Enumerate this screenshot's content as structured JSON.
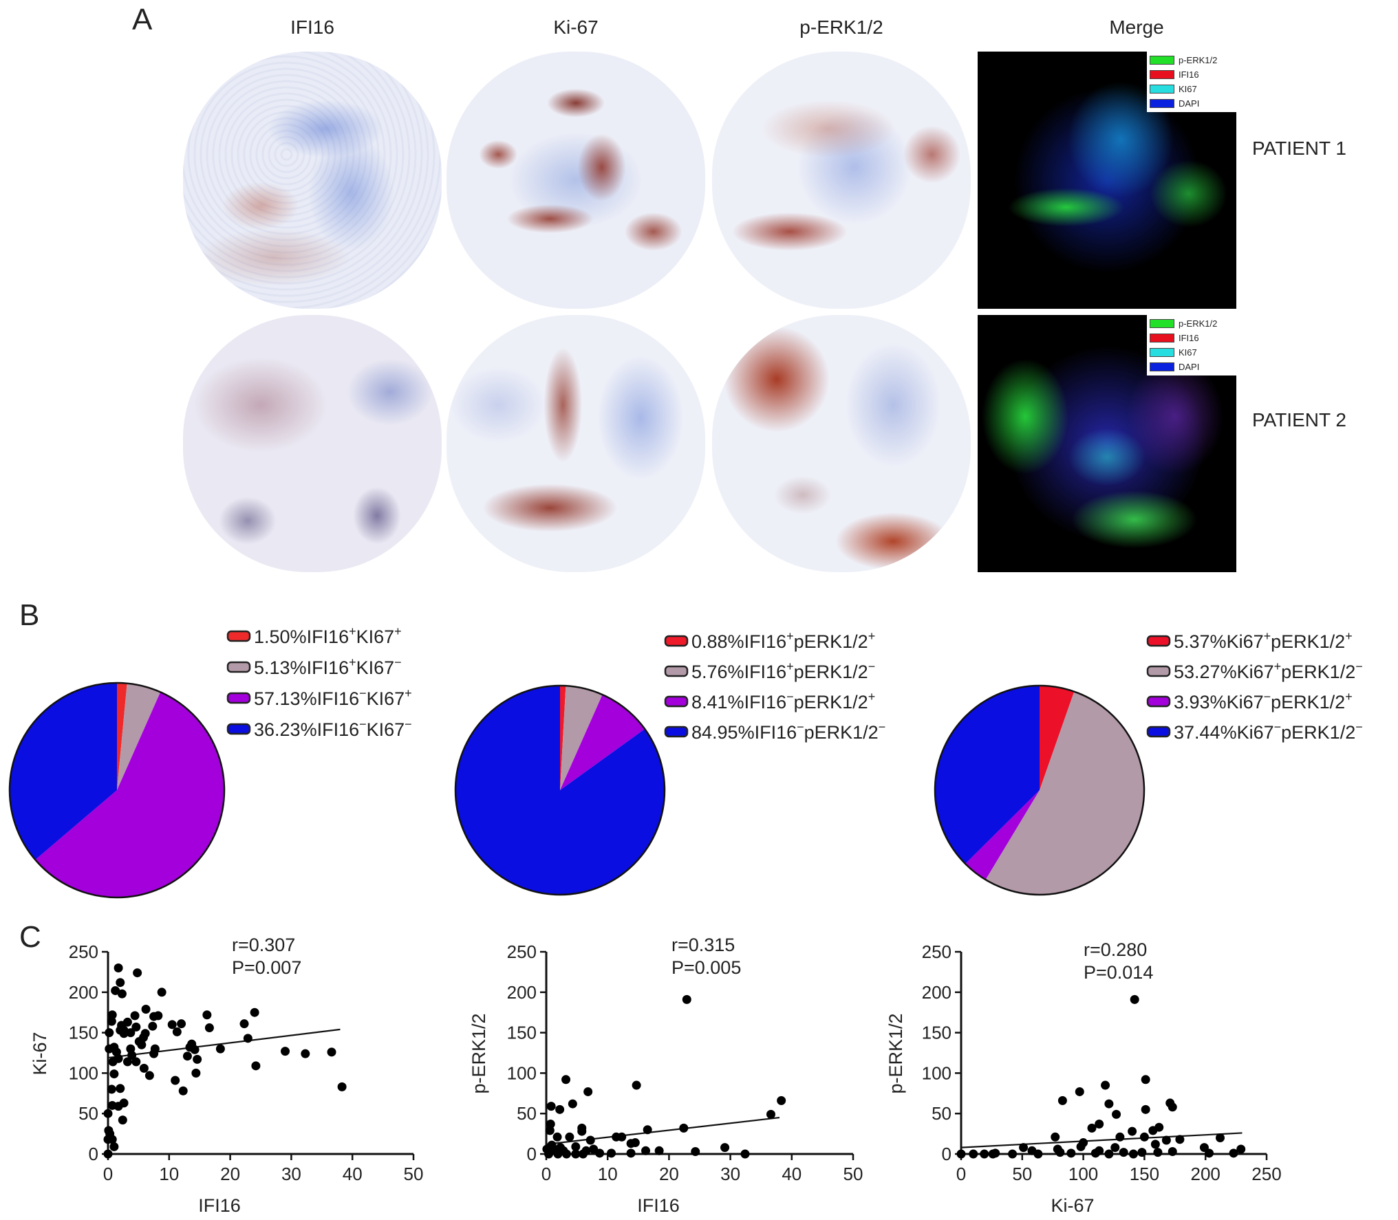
{
  "panel_labels": {
    "a": "A",
    "b": "B",
    "c": "C"
  },
  "panel_a": {
    "columns": [
      "IFI16",
      "Ki-67",
      "p-ERK1/2",
      "Merge"
    ],
    "rows": [
      "PATIENT 1",
      "PATIENT 2"
    ],
    "merge_legend": [
      {
        "label": "p-ERK1/2",
        "color": "#22e028"
      },
      {
        "label": "IFI16",
        "color": "#e8101e"
      },
      {
        "label": "KI67",
        "color": "#27dde0"
      },
      {
        "label": "DAPI",
        "color": "#0a22e0"
      }
    ]
  },
  "chart_data": [
    {
      "type": "pie",
      "slices": [
        {
          "label": "1.50%",
          "a": "IFI16",
          "as": "+",
          "b": "KI67",
          "bs": "+",
          "value": 1.5,
          "color": "#ef2a2a"
        },
        {
          "label": "5.13%",
          "a": "IFI16",
          "as": "+",
          "b": "KI67",
          "bs": "−",
          "value": 5.13,
          "color": "#b39aa8"
        },
        {
          "label": "57.13%",
          "a": "IFI16",
          "as": "−",
          "b": "KI67",
          "bs": "+",
          "value": 57.13,
          "color": "#a300dc"
        },
        {
          "label": "36.23%",
          "a": "IFI16",
          "as": "−",
          "b": "KI67",
          "bs": "−",
          "value": 36.23,
          "color": "#0a0ee0"
        }
      ],
      "legend": "right"
    },
    {
      "type": "pie",
      "slices": [
        {
          "label": "0.88%",
          "a": "IFI16",
          "as": "+",
          "b": "pERK1/2",
          "bs": "+",
          "value": 0.88,
          "color": "#ef1a2a"
        },
        {
          "label": "5.76%",
          "a": "IFI16",
          "as": "+",
          "b": "pERK1/2",
          "bs": "−",
          "value": 5.76,
          "color": "#b39aa8"
        },
        {
          "label": "8.41%",
          "a": "IFI16",
          "as": "−",
          "b": "pERK1/2",
          "bs": "+",
          "value": 8.41,
          "color": "#a300dc"
        },
        {
          "label": "84.95%",
          "a": "IFI16",
          "as": "−",
          "b": "pERK1/2",
          "bs": "−",
          "value": 84.95,
          "color": "#0a0ee0"
        }
      ],
      "legend": "right"
    },
    {
      "type": "pie",
      "slices": [
        {
          "label": "5.37%",
          "a": "Ki67",
          "as": "+",
          "b": "pERK1/2",
          "bs": "+",
          "value": 5.37,
          "color": "#ec1028"
        },
        {
          "label": "53.27%",
          "a": "Ki67",
          "as": "+",
          "b": "pERK1/2",
          "bs": "−",
          "value": 53.27,
          "color": "#b39aa8"
        },
        {
          "label": "3.93%",
          "a": "Ki67",
          "as": "−",
          "b": "pERK1/2",
          "bs": "+",
          "value": 3.93,
          "color": "#a300dc"
        },
        {
          "label": "37.44%",
          "a": "Ki67",
          "as": "−",
          "b": "pERK1/2",
          "bs": "−",
          "value": 37.44,
          "color": "#0a0ee0"
        }
      ],
      "legend": "right"
    },
    {
      "type": "scatter",
      "xlabel": "IFI16",
      "ylabel": "Ki-67",
      "xlim": [
        0,
        50
      ],
      "ylim": [
        0,
        250
      ],
      "xticks": [
        "0",
        "10",
        "20",
        "30",
        "40",
        "50"
      ],
      "yticks": [
        "0",
        "50",
        "100",
        "150",
        "200",
        "250"
      ],
      "annotation": [
        "r=0.307",
        "P=0.007"
      ],
      "fit_line": [
        [
          0,
          119
        ],
        [
          38,
          154
        ]
      ],
      "points": [
        [
          1.7,
          230
        ],
        [
          4.8,
          224
        ],
        [
          2,
          212
        ],
        [
          1.2,
          202
        ],
        [
          2.3,
          198
        ],
        [
          8.8,
          200
        ],
        [
          0.7,
          172
        ],
        [
          0.6,
          164
        ],
        [
          4.4,
          171
        ],
        [
          6.2,
          179
        ],
        [
          7.5,
          170
        ],
        [
          8.2,
          171
        ],
        [
          3.2,
          163
        ],
        [
          2.2,
          159
        ],
        [
          2.6,
          153
        ],
        [
          2.6,
          149
        ],
        [
          3.7,
          150
        ],
        [
          4.6,
          157
        ],
        [
          6.1,
          149
        ],
        [
          5.8,
          144
        ],
        [
          5.1,
          139
        ],
        [
          5.5,
          135
        ],
        [
          7.3,
          158
        ],
        [
          10.5,
          160
        ],
        [
          11.3,
          151
        ],
        [
          12,
          161
        ],
        [
          16.2,
          172
        ],
        [
          16.6,
          156
        ],
        [
          22.3,
          161
        ],
        [
          24,
          175
        ],
        [
          22.9,
          143
        ],
        [
          13.7,
          136
        ],
        [
          13.4,
          132
        ],
        [
          14.2,
          129
        ],
        [
          13,
          121
        ],
        [
          14.6,
          117
        ],
        [
          18.4,
          130
        ],
        [
          29,
          127
        ],
        [
          32.3,
          124
        ],
        [
          36.6,
          126
        ],
        [
          24.2,
          109
        ],
        [
          38.3,
          83
        ],
        [
          11,
          91
        ],
        [
          12.3,
          78
        ],
        [
          14.4,
          100
        ],
        [
          6.8,
          97
        ],
        [
          5.9,
          106
        ],
        [
          7.7,
          130
        ],
        [
          7.5,
          124
        ],
        [
          3.7,
          130
        ],
        [
          3.9,
          122
        ],
        [
          3.2,
          114
        ],
        [
          4.6,
          114
        ],
        [
          0.2,
          130
        ],
        [
          1,
          132
        ],
        [
          1.4,
          126
        ],
        [
          1.7,
          118
        ],
        [
          0.8,
          114
        ],
        [
          1,
          99
        ],
        [
          0.6,
          80
        ],
        [
          2,
          81
        ],
        [
          0.7,
          60
        ],
        [
          1.7,
          59
        ],
        [
          2.6,
          63
        ],
        [
          2.4,
          42
        ],
        [
          0,
          50
        ],
        [
          0.1,
          29
        ],
        [
          0.3,
          25
        ],
        [
          0,
          18
        ],
        [
          0.7,
          18
        ],
        [
          1,
          9
        ],
        [
          0,
          0
        ],
        [
          0.2,
          150
        ],
        [
          2,
          153
        ]
      ]
    },
    {
      "type": "scatter",
      "xlabel": "IFI16",
      "ylabel": "p-ERK1/2",
      "xlim": [
        0,
        50
      ],
      "ylim": [
        0,
        250
      ],
      "xticks": [
        "0",
        "10",
        "20",
        "30",
        "40",
        "50"
      ],
      "yticks": [
        "0",
        "50",
        "100",
        "150",
        "200",
        "250"
      ],
      "annotation": [
        "r=0.315",
        "P=0.005"
      ],
      "fit_line": [
        [
          0,
          12
        ],
        [
          38,
          45
        ]
      ],
      "points": [
        [
          22.9,
          191
        ],
        [
          3.2,
          92
        ],
        [
          14.7,
          85
        ],
        [
          6.8,
          77
        ],
        [
          38.3,
          66
        ],
        [
          4.3,
          62
        ],
        [
          0.8,
          59
        ],
        [
          2.2,
          55
        ],
        [
          36.6,
          49
        ],
        [
          0.7,
          37
        ],
        [
          0.6,
          29
        ],
        [
          5.8,
          32
        ],
        [
          5.8,
          28
        ],
        [
          22.4,
          32
        ],
        [
          16.5,
          30
        ],
        [
          1.8,
          21
        ],
        [
          3.8,
          21
        ],
        [
          7.2,
          17
        ],
        [
          11.4,
          21
        ],
        [
          12.3,
          21
        ],
        [
          13.8,
          13
        ],
        [
          14.5,
          14
        ],
        [
          29.1,
          8
        ],
        [
          32.4,
          0
        ],
        [
          24.3,
          3
        ],
        [
          18.4,
          4
        ],
        [
          16.2,
          4
        ],
        [
          13.8,
          1
        ],
        [
          10.6,
          1
        ],
        [
          8.7,
          1
        ],
        [
          7.7,
          6
        ],
        [
          4.8,
          9
        ],
        [
          2.8,
          4
        ],
        [
          1.4,
          5
        ],
        [
          0.1,
          6
        ],
        [
          0.4,
          0
        ],
        [
          1.9,
          0
        ],
        [
          3.3,
          0
        ],
        [
          6,
          0
        ],
        [
          4.8,
          0
        ],
        [
          6.5,
          4
        ],
        [
          0.9,
          11
        ],
        [
          2.3,
          8
        ]
      ]
    },
    {
      "type": "scatter",
      "xlabel": "Ki-67",
      "ylabel": "p-ERK1/2",
      "xlim": [
        0,
        250
      ],
      "ylim": [
        0,
        250
      ],
      "xticks": [
        "0",
        "50",
        "100",
        "150",
        "200",
        "250"
      ],
      "yticks": [
        "0",
        "50",
        "100",
        "150",
        "200",
        "250"
      ],
      "annotation": [
        "r=0.280",
        "P=0.014"
      ],
      "fit_line": [
        [
          0,
          8
        ],
        [
          230,
          26
        ]
      ],
      "points": [
        [
          142,
          191
        ],
        [
          151,
          92
        ],
        [
          118,
          85
        ],
        [
          97,
          77
        ],
        [
          83,
          66
        ],
        [
          121,
          62
        ],
        [
          171,
          63
        ],
        [
          173,
          58
        ],
        [
          151,
          55
        ],
        [
          127,
          49
        ],
        [
          113,
          37
        ],
        [
          107,
          32
        ],
        [
          140,
          28
        ],
        [
          157,
          29
        ],
        [
          162,
          33
        ],
        [
          77,
          21
        ],
        [
          130,
          21
        ],
        [
          150,
          21
        ],
        [
          212,
          20
        ],
        [
          179,
          18
        ],
        [
          168,
          17
        ],
        [
          100,
          14
        ],
        [
          98,
          9
        ],
        [
          159,
          12
        ],
        [
          79,
          6
        ],
        [
          51,
          8
        ],
        [
          199,
          8
        ],
        [
          229,
          6
        ],
        [
          223,
          1
        ],
        [
          203,
          1
        ],
        [
          173,
          3
        ],
        [
          161,
          2
        ],
        [
          148,
          2
        ],
        [
          133,
          2
        ],
        [
          126,
          8
        ],
        [
          113,
          4
        ],
        [
          110,
          1
        ],
        [
          90,
          1
        ],
        [
          81,
          2
        ],
        [
          63,
          0
        ],
        [
          58,
          4
        ],
        [
          42,
          0
        ],
        [
          28,
          1
        ],
        [
          19,
          0
        ],
        [
          10,
          0
        ],
        [
          0,
          0
        ],
        [
          26,
          0
        ],
        [
          121,
          0
        ],
        [
          141,
          0
        ]
      ]
    }
  ]
}
